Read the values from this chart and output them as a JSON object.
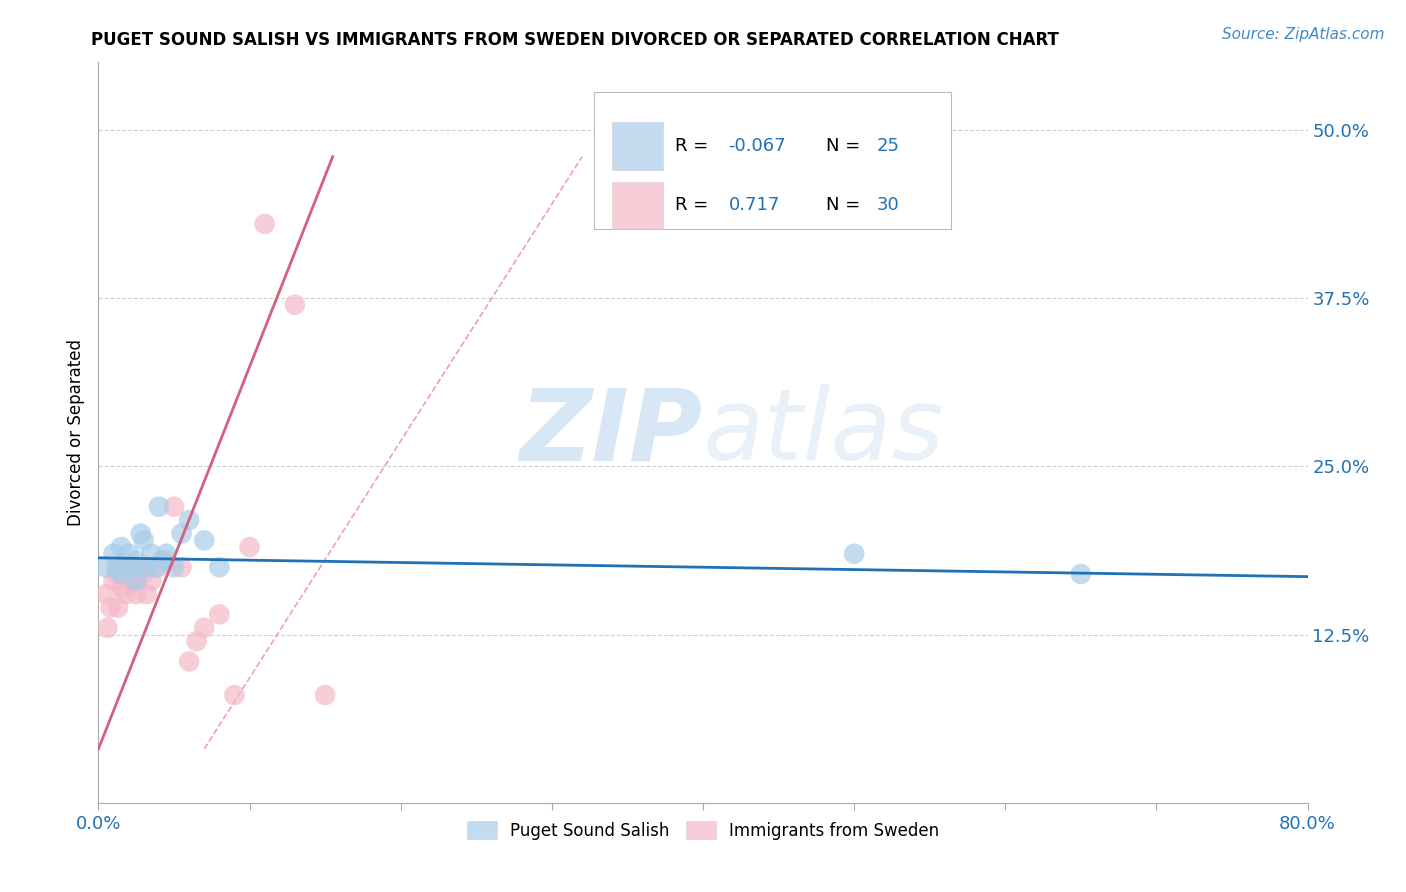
{
  "title": "PUGET SOUND SALISH VS IMMIGRANTS FROM SWEDEN DIVORCED OR SEPARATED CORRELATION CHART",
  "source_text": "Source: ZipAtlas.com",
  "ylabel": "Divorced or Separated",
  "xlim": [
    0.0,
    0.8
  ],
  "ylim": [
    0.0,
    0.55
  ],
  "y_ticks": [
    0.125,
    0.25,
    0.375,
    0.5
  ],
  "y_tick_labels": [
    "12.5%",
    "25.0%",
    "37.5%",
    "50.0%"
  ],
  "x_ticks": [
    0.0,
    0.1,
    0.2,
    0.3,
    0.4,
    0.5,
    0.6,
    0.7,
    0.8
  ],
  "x_tick_labels": [
    "0.0%",
    "",
    "",
    "",
    "",
    "",
    "",
    "",
    "80.0%"
  ],
  "blue_color": "#a8cce8",
  "pink_color": "#f4b8c8",
  "blue_line_color": "#2171b5",
  "pink_line_color": "#d4607a",
  "ref_line_color": "#f0a0b0",
  "watermark_zip": "ZIP",
  "watermark_atlas": "atlas",
  "blue_scatter_x": [
    0.005,
    0.01,
    0.012,
    0.015,
    0.015,
    0.018,
    0.02,
    0.022,
    0.025,
    0.025,
    0.028,
    0.03,
    0.032,
    0.035,
    0.038,
    0.04,
    0.042,
    0.045,
    0.05,
    0.055,
    0.06,
    0.07,
    0.08,
    0.5,
    0.65
  ],
  "blue_scatter_y": [
    0.175,
    0.185,
    0.175,
    0.17,
    0.19,
    0.175,
    0.185,
    0.175,
    0.18,
    0.165,
    0.2,
    0.195,
    0.175,
    0.185,
    0.175,
    0.22,
    0.18,
    0.185,
    0.175,
    0.2,
    0.21,
    0.195,
    0.175,
    0.185,
    0.17
  ],
  "pink_scatter_x": [
    0.005,
    0.006,
    0.008,
    0.01,
    0.012,
    0.013,
    0.015,
    0.016,
    0.018,
    0.02,
    0.022,
    0.025,
    0.025,
    0.028,
    0.03,
    0.032,
    0.035,
    0.04,
    0.045,
    0.05,
    0.055,
    0.06,
    0.065,
    0.07,
    0.08,
    0.09,
    0.1,
    0.11,
    0.13,
    0.15
  ],
  "pink_scatter_y": [
    0.155,
    0.13,
    0.145,
    0.165,
    0.17,
    0.145,
    0.175,
    0.16,
    0.155,
    0.175,
    0.165,
    0.165,
    0.155,
    0.175,
    0.17,
    0.155,
    0.165,
    0.175,
    0.18,
    0.22,
    0.175,
    0.105,
    0.12,
    0.13,
    0.14,
    0.08,
    0.19,
    0.43,
    0.37,
    0.08
  ],
  "blue_line_x": [
    0.0,
    0.8
  ],
  "blue_line_y": [
    0.182,
    0.168
  ],
  "pink_line_x": [
    0.0,
    0.155
  ],
  "pink_line_y": [
    0.04,
    0.48
  ],
  "ref_line_x": [
    0.07,
    0.32
  ],
  "ref_line_y": [
    0.04,
    0.48
  ],
  "legend_blue_label": "Puget Sound Salish",
  "legend_pink_label": "Immigrants from Sweden",
  "legend_r1": "-0.067",
  "legend_n1": "25",
  "legend_r2": "0.717",
  "legend_n2": "30"
}
